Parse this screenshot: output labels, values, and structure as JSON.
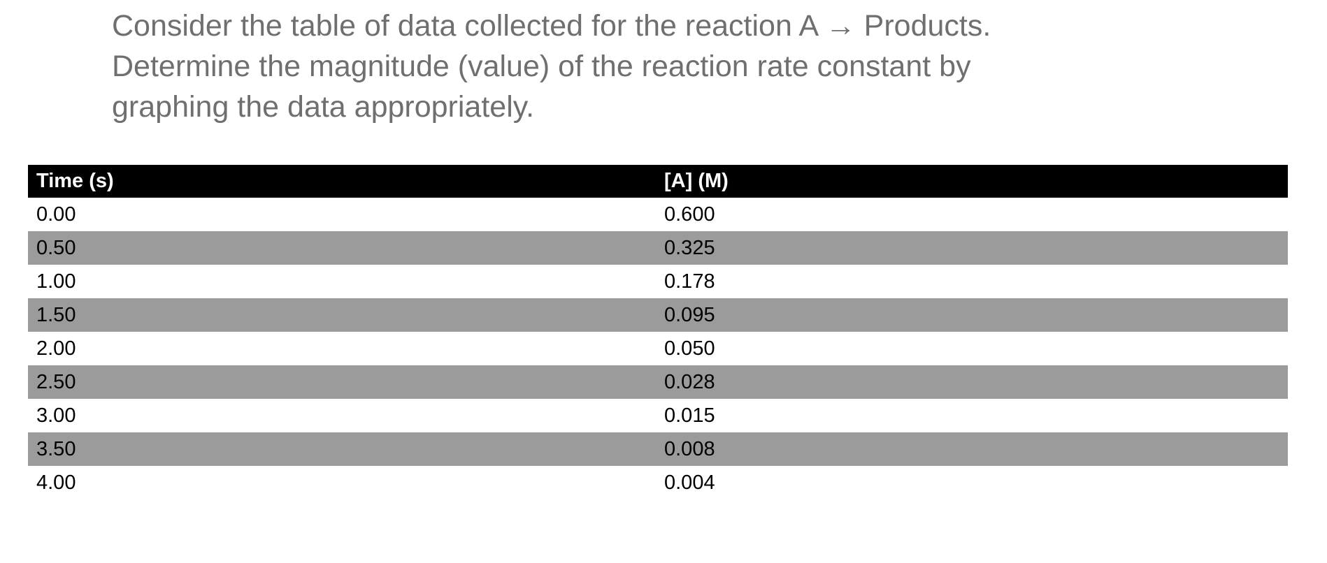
{
  "page": {
    "background_color": "#ffffff"
  },
  "question": {
    "text_color": "#6f6f6f",
    "lines": [
      "Consider the table of data collected for the reaction A → Products.",
      "Determine the magnitude (value) of the reaction rate constant by",
      "graphing the data appropriately."
    ]
  },
  "table": {
    "header": {
      "background_color": "#000000",
      "text_color": "#ffffff",
      "columns": [
        "Time (s)",
        "[A] (M)"
      ]
    },
    "row_background_color": "#ffffff",
    "row_alt_background_color": "#9b9b9b",
    "row_text_color": "#000000",
    "rows": [
      {
        "time": "0.00",
        "concentration": "0.600"
      },
      {
        "time": "0.50",
        "concentration": "0.325"
      },
      {
        "time": "1.00",
        "concentration": "0.178"
      },
      {
        "time": "1.50",
        "concentration": "0.095"
      },
      {
        "time": "2.00",
        "concentration": "0.050"
      },
      {
        "time": "2.50",
        "concentration": "0.028"
      },
      {
        "time": "3.00",
        "concentration": "0.015"
      },
      {
        "time": "3.50",
        "concentration": "0.008"
      },
      {
        "time": "4.00",
        "concentration": "0.004"
      }
    ]
  },
  "chart_data": {
    "type": "table",
    "title": "",
    "columns": [
      "Time (s)",
      "[A] (M)"
    ],
    "x": [
      0.0,
      0.5,
      1.0,
      1.5,
      2.0,
      2.5,
      3.0,
      3.5,
      4.0
    ],
    "series": [
      {
        "name": "[A] (M)",
        "values": [
          0.6,
          0.325,
          0.178,
          0.095,
          0.05,
          0.028,
          0.015,
          0.008,
          0.004
        ]
      }
    ]
  }
}
